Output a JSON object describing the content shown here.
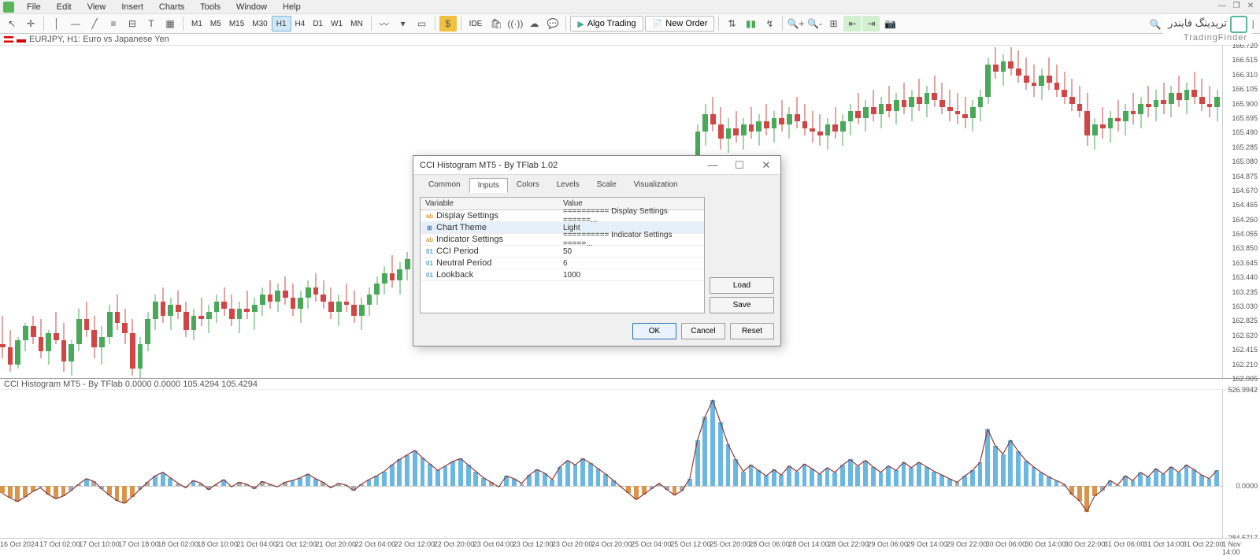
{
  "menu": {
    "items": [
      "File",
      "Edit",
      "View",
      "Insert",
      "Charts",
      "Tools",
      "Window",
      "Help"
    ]
  },
  "timeframes": {
    "items": [
      "M1",
      "M5",
      "M15",
      "M30",
      "H1",
      "H4",
      "D1",
      "W1",
      "MN"
    ],
    "active": "H1"
  },
  "toolbar": {
    "algo": "Algo Trading",
    "neworder": "New Order",
    "ide": "IDE"
  },
  "logo": {
    "arabic": "تریدینگ فایندر",
    "eng": "TradingFinder"
  },
  "chart": {
    "title": "EURJPY, H1: Euro vs Japanese Yen",
    "price_min": 162.005,
    "price_max": 166.72,
    "ticks": [
      "166.720",
      "166.515",
      "166.310",
      "166.105",
      "165.900",
      "165.695",
      "165.490",
      "165.285",
      "165.080",
      "164.875",
      "164.670",
      "164.465",
      "164.260",
      "164.055",
      "163.850",
      "163.645",
      "163.440",
      "163.235",
      "163.030",
      "162.825",
      "162.620",
      "162.415",
      "162.210",
      "162.005"
    ],
    "up_color": "#4aa85a",
    "down_color": "#d04545",
    "wick_color": "#333"
  },
  "indicator": {
    "title": "CCI Histogram MT5 - By TFlab 0.0000 0.0000 105.4294 105.4294",
    "ticks": [
      "526.9942",
      "0.0000",
      "-284.5717"
    ],
    "pos_color": "#6cb7e0",
    "neg_color": "#d9934a",
    "line_color": "#8a3a3a",
    "neutral_color": "#aaa"
  },
  "timeaxis": {
    "ticks": [
      "16 Oct 2024",
      "17 Oct 02:00",
      "17 Oct 10:00",
      "17 Oct 18:00",
      "18 Oct 02:00",
      "18 Oct 10:00",
      "21 Oct 04:00",
      "21 Oct 12:00",
      "21 Oct 20:00",
      "22 Oct 04:00",
      "22 Oct 12:00",
      "22 Oct 20:00",
      "23 Oct 04:00",
      "23 Oct 12:00",
      "23 Oct 20:00",
      "24 Oct 20:00",
      "25 Oct 04:00",
      "25 Oct 12:00",
      "25 Oct 20:00",
      "28 Oct 06:00",
      "28 Oct 14:00",
      "28 Oct 22:00",
      "29 Oct 06:00",
      "29 Oct 14:00",
      "29 Oct 22:00",
      "30 Oct 06:00",
      "30 Oct 14:00",
      "30 Oct 22:00",
      "31 Oct 06:00",
      "31 Oct 14:00",
      "31 Oct 22:00",
      "1 Nov 14:00"
    ]
  },
  "dialog": {
    "title": "CCI Histogram MT5 - By TFlab 1.02",
    "tabs": [
      "Common",
      "Inputs",
      "Colors",
      "Levels",
      "Scale",
      "Visualization"
    ],
    "active_tab": "Inputs",
    "headers": {
      "var": "Variable",
      "val": "Value"
    },
    "rows": [
      {
        "icon": "ab",
        "icolor": "#d9a050",
        "var": "Display Settings",
        "val": "========== Display Settings ======..."
      },
      {
        "icon": "⊞",
        "icolor": "#5080c0",
        "var": "Chart Theme",
        "val": "Light",
        "sel": true
      },
      {
        "icon": "ab",
        "icolor": "#d9a050",
        "var": "Indicator Settings",
        "val": "========== Indicator Settings =====..."
      },
      {
        "icon": "01",
        "icolor": "#5aa0d0",
        "var": "CCI Period",
        "val": "50"
      },
      {
        "icon": "01",
        "icolor": "#5aa0d0",
        "var": "Neutral Period",
        "val": "6"
      },
      {
        "icon": "01",
        "icolor": "#5aa0d0",
        "var": "Lookback",
        "val": "1000"
      }
    ],
    "buttons": {
      "load": "Load",
      "save": "Save",
      "ok": "OK",
      "cancel": "Cancel",
      "reset": "Reset"
    }
  },
  "candles": [
    {
      "o": 162.5,
      "h": 162.9,
      "l": 162.3,
      "c": 162.45
    },
    {
      "o": 162.45,
      "h": 162.7,
      "l": 162.1,
      "c": 162.2
    },
    {
      "o": 162.2,
      "h": 162.6,
      "l": 162.15,
      "c": 162.55
    },
    {
      "o": 162.55,
      "h": 162.8,
      "l": 162.4,
      "c": 162.75
    },
    {
      "o": 162.75,
      "h": 162.9,
      "l": 162.5,
      "c": 162.6
    },
    {
      "o": 162.6,
      "h": 162.85,
      "l": 162.3,
      "c": 162.4
    },
    {
      "o": 162.4,
      "h": 162.7,
      "l": 162.2,
      "c": 162.65
    },
    {
      "o": 162.65,
      "h": 162.95,
      "l": 162.5,
      "c": 162.55
    },
    {
      "o": 162.55,
      "h": 162.8,
      "l": 162.1,
      "c": 162.25
    },
    {
      "o": 162.25,
      "h": 162.55,
      "l": 162.05,
      "c": 162.5
    },
    {
      "o": 162.5,
      "h": 163.0,
      "l": 162.4,
      "c": 162.85
    },
    {
      "o": 162.85,
      "h": 163.1,
      "l": 162.6,
      "c": 162.7
    },
    {
      "o": 162.7,
      "h": 162.9,
      "l": 162.3,
      "c": 162.45
    },
    {
      "o": 162.45,
      "h": 162.75,
      "l": 162.2,
      "c": 162.6
    },
    {
      "o": 162.6,
      "h": 163.05,
      "l": 162.5,
      "c": 162.95
    },
    {
      "o": 162.95,
      "h": 163.2,
      "l": 162.7,
      "c": 162.8
    },
    {
      "o": 162.8,
      "h": 163.0,
      "l": 162.5,
      "c": 162.65
    },
    {
      "o": 162.65,
      "h": 162.85,
      "l": 162.05,
      "c": 162.15
    },
    {
      "o": 162.15,
      "h": 162.6,
      "l": 162.0,
      "c": 162.5
    },
    {
      "o": 162.5,
      "h": 162.95,
      "l": 162.4,
      "c": 162.85
    },
    {
      "o": 162.85,
      "h": 163.2,
      "l": 162.7,
      "c": 163.1
    },
    {
      "o": 163.1,
      "h": 163.3,
      "l": 162.8,
      "c": 162.9
    },
    {
      "o": 162.9,
      "h": 163.15,
      "l": 162.7,
      "c": 163.05
    },
    {
      "o": 163.05,
      "h": 163.25,
      "l": 162.85,
      "c": 162.95
    },
    {
      "o": 162.95,
      "h": 163.1,
      "l": 162.6,
      "c": 162.7
    },
    {
      "o": 162.7,
      "h": 163.0,
      "l": 162.55,
      "c": 162.9
    },
    {
      "o": 162.9,
      "h": 163.15,
      "l": 162.75,
      "c": 162.85
    },
    {
      "o": 162.85,
      "h": 163.05,
      "l": 162.65,
      "c": 162.95
    },
    {
      "o": 162.95,
      "h": 163.2,
      "l": 162.8,
      "c": 163.1
    },
    {
      "o": 163.1,
      "h": 163.3,
      "l": 162.9,
      "c": 163.0
    },
    {
      "o": 163.0,
      "h": 163.2,
      "l": 162.75,
      "c": 162.85
    },
    {
      "o": 162.85,
      "h": 163.1,
      "l": 162.65,
      "c": 163.0
    },
    {
      "o": 163.0,
      "h": 163.25,
      "l": 162.85,
      "c": 162.95
    },
    {
      "o": 162.95,
      "h": 163.15,
      "l": 162.7,
      "c": 163.05
    },
    {
      "o": 163.05,
      "h": 163.3,
      "l": 162.9,
      "c": 163.2
    },
    {
      "o": 163.2,
      "h": 163.4,
      "l": 163.0,
      "c": 163.1
    },
    {
      "o": 163.1,
      "h": 163.35,
      "l": 162.95,
      "c": 163.25
    },
    {
      "o": 163.25,
      "h": 163.45,
      "l": 163.05,
      "c": 163.15
    },
    {
      "o": 163.15,
      "h": 163.35,
      "l": 162.9,
      "c": 163.0
    },
    {
      "o": 163.0,
      "h": 163.25,
      "l": 162.8,
      "c": 163.15
    },
    {
      "o": 163.15,
      "h": 163.4,
      "l": 163.0,
      "c": 163.3
    },
    {
      "o": 163.3,
      "h": 163.5,
      "l": 163.1,
      "c": 163.2
    },
    {
      "o": 163.2,
      "h": 163.4,
      "l": 163.0,
      "c": 163.1
    },
    {
      "o": 163.1,
      "h": 163.3,
      "l": 162.85,
      "c": 162.95
    },
    {
      "o": 162.95,
      "h": 163.2,
      "l": 162.75,
      "c": 163.1
    },
    {
      "o": 163.1,
      "h": 163.35,
      "l": 162.95,
      "c": 163.05
    },
    {
      "o": 163.05,
      "h": 163.25,
      "l": 162.8,
      "c": 162.9
    },
    {
      "o": 162.9,
      "h": 163.15,
      "l": 162.7,
      "c": 163.05
    },
    {
      "o": 163.05,
      "h": 163.3,
      "l": 162.9,
      "c": 163.2
    },
    {
      "o": 163.2,
      "h": 163.45,
      "l": 163.05,
      "c": 163.35
    },
    {
      "o": 163.35,
      "h": 163.6,
      "l": 163.2,
      "c": 163.5
    },
    {
      "o": 163.5,
      "h": 163.75,
      "l": 163.3,
      "c": 163.4
    },
    {
      "o": 163.4,
      "h": 163.65,
      "l": 163.2,
      "c": 163.55
    },
    {
      "o": 163.55,
      "h": 163.8,
      "l": 163.4,
      "c": 163.7
    },
    {
      "o": 163.7,
      "h": 163.9,
      "l": 163.5,
      "c": 163.6
    },
    {
      "o": 163.6,
      "h": 163.85,
      "l": 163.4,
      "c": 163.75
    },
    {
      "o": 163.75,
      "h": 164.0,
      "l": 163.6,
      "c": 163.9
    },
    {
      "o": 163.9,
      "h": 164.1,
      "l": 163.7,
      "c": 163.8
    },
    {
      "o": 163.8,
      "h": 164.05,
      "l": 163.6,
      "c": 163.95
    },
    {
      "o": 163.95,
      "h": 164.2,
      "l": 163.8,
      "c": 164.1
    },
    {
      "o": 164.1,
      "h": 164.3,
      "l": 163.9,
      "c": 164.0
    },
    {
      "o": 164.0,
      "h": 164.2,
      "l": 163.75,
      "c": 163.85
    },
    {
      "o": 163.85,
      "h": 164.1,
      "l": 163.65,
      "c": 164.0
    },
    {
      "o": 164.0,
      "h": 164.25,
      "l": 163.85,
      "c": 163.95
    },
    {
      "o": 163.95,
      "h": 164.15,
      "l": 163.7,
      "c": 163.8
    },
    {
      "o": 163.8,
      "h": 164.05,
      "l": 163.6,
      "c": 163.95
    },
    {
      "o": 163.95,
      "h": 164.2,
      "l": 163.8,
      "c": 164.1
    },
    {
      "o": 164.1,
      "h": 164.35,
      "l": 163.95,
      "c": 164.25
    },
    {
      "o": 164.25,
      "h": 164.45,
      "l": 164.05,
      "c": 164.15
    },
    {
      "o": 164.15,
      "h": 164.4,
      "l": 163.95,
      "c": 164.3
    },
    {
      "o": 164.3,
      "h": 164.55,
      "l": 164.15,
      "c": 164.45
    },
    {
      "o": 164.45,
      "h": 164.65,
      "l": 164.25,
      "c": 164.35
    },
    {
      "o": 164.35,
      "h": 164.6,
      "l": 164.15,
      "c": 164.5
    },
    {
      "o": 164.5,
      "h": 164.75,
      "l": 164.35,
      "c": 164.65
    },
    {
      "o": 164.65,
      "h": 164.85,
      "l": 164.45,
      "c": 164.55
    },
    {
      "o": 164.55,
      "h": 164.8,
      "l": 164.35,
      "c": 164.45
    },
    {
      "o": 164.45,
      "h": 164.7,
      "l": 164.25,
      "c": 164.6
    },
    {
      "o": 164.6,
      "h": 164.85,
      "l": 164.45,
      "c": 164.75
    },
    {
      "o": 164.75,
      "h": 164.95,
      "l": 164.55,
      "c": 164.65
    },
    {
      "o": 164.65,
      "h": 164.9,
      "l": 164.45,
      "c": 164.55
    },
    {
      "o": 164.55,
      "h": 164.75,
      "l": 164.3,
      "c": 164.4
    },
    {
      "o": 164.4,
      "h": 164.65,
      "l": 164.2,
      "c": 164.3
    },
    {
      "o": 164.3,
      "h": 164.55,
      "l": 164.1,
      "c": 164.45
    },
    {
      "o": 164.45,
      "h": 164.7,
      "l": 164.3,
      "c": 164.6
    },
    {
      "o": 164.6,
      "h": 164.85,
      "l": 164.45,
      "c": 164.55
    },
    {
      "o": 164.55,
      "h": 164.75,
      "l": 164.3,
      "c": 164.4
    },
    {
      "o": 164.4,
      "h": 164.65,
      "l": 164.2,
      "c": 164.55
    },
    {
      "o": 164.55,
      "h": 164.8,
      "l": 164.4,
      "c": 164.5
    },
    {
      "o": 164.5,
      "h": 164.7,
      "l": 164.25,
      "c": 164.35
    },
    {
      "o": 164.35,
      "h": 164.6,
      "l": 164.15,
      "c": 164.5
    },
    {
      "o": 164.5,
      "h": 164.9,
      "l": 164.4,
      "c": 164.8
    },
    {
      "o": 164.8,
      "h": 165.6,
      "l": 164.7,
      "c": 165.5
    },
    {
      "o": 165.5,
      "h": 165.9,
      "l": 165.3,
      "c": 165.75
    },
    {
      "o": 165.75,
      "h": 166.0,
      "l": 165.5,
      "c": 165.6
    },
    {
      "o": 165.6,
      "h": 165.85,
      "l": 165.25,
      "c": 165.4
    },
    {
      "o": 165.4,
      "h": 165.7,
      "l": 165.2,
      "c": 165.55
    },
    {
      "o": 165.55,
      "h": 165.8,
      "l": 165.35,
      "c": 165.45
    },
    {
      "o": 165.45,
      "h": 165.7,
      "l": 165.25,
      "c": 165.6
    },
    {
      "o": 165.6,
      "h": 165.85,
      "l": 165.4,
      "c": 165.5
    },
    {
      "o": 165.5,
      "h": 165.75,
      "l": 165.3,
      "c": 165.65
    },
    {
      "o": 165.65,
      "h": 165.9,
      "l": 165.45,
      "c": 165.55
    },
    {
      "o": 165.55,
      "h": 165.8,
      "l": 165.35,
      "c": 165.7
    },
    {
      "o": 165.7,
      "h": 165.95,
      "l": 165.5,
      "c": 165.6
    },
    {
      "o": 165.6,
      "h": 165.85,
      "l": 165.4,
      "c": 165.75
    },
    {
      "o": 165.75,
      "h": 166.0,
      "l": 165.55,
      "c": 165.65
    },
    {
      "o": 165.65,
      "h": 165.9,
      "l": 165.45,
      "c": 165.55
    },
    {
      "o": 165.55,
      "h": 165.8,
      "l": 165.35,
      "c": 165.5
    },
    {
      "o": 165.5,
      "h": 165.75,
      "l": 165.3,
      "c": 165.45
    },
    {
      "o": 165.45,
      "h": 165.7,
      "l": 165.25,
      "c": 165.6
    },
    {
      "o": 165.6,
      "h": 165.85,
      "l": 165.4,
      "c": 165.5
    },
    {
      "o": 165.5,
      "h": 165.75,
      "l": 165.3,
      "c": 165.65
    },
    {
      "o": 165.65,
      "h": 165.9,
      "l": 165.45,
      "c": 165.8
    },
    {
      "o": 165.8,
      "h": 166.05,
      "l": 165.6,
      "c": 165.7
    },
    {
      "o": 165.7,
      "h": 165.95,
      "l": 165.5,
      "c": 165.85
    },
    {
      "o": 165.85,
      "h": 166.1,
      "l": 165.65,
      "c": 165.75
    },
    {
      "o": 165.75,
      "h": 166.0,
      "l": 165.55,
      "c": 165.9
    },
    {
      "o": 165.9,
      "h": 166.15,
      "l": 165.7,
      "c": 165.8
    },
    {
      "o": 165.8,
      "h": 166.05,
      "l": 165.6,
      "c": 165.95
    },
    {
      "o": 165.95,
      "h": 166.2,
      "l": 165.75,
      "c": 165.85
    },
    {
      "o": 165.85,
      "h": 166.1,
      "l": 165.65,
      "c": 166.0
    },
    {
      "o": 166.0,
      "h": 166.25,
      "l": 165.8,
      "c": 165.9
    },
    {
      "o": 165.9,
      "h": 166.15,
      "l": 165.7,
      "c": 166.05
    },
    {
      "o": 166.05,
      "h": 166.3,
      "l": 165.85,
      "c": 165.95
    },
    {
      "o": 165.95,
      "h": 166.2,
      "l": 165.75,
      "c": 165.85
    },
    {
      "o": 165.85,
      "h": 166.1,
      "l": 165.65,
      "c": 165.8
    },
    {
      "o": 165.8,
      "h": 166.05,
      "l": 165.6,
      "c": 165.75
    },
    {
      "o": 165.75,
      "h": 166.0,
      "l": 165.55,
      "c": 165.7
    },
    {
      "o": 165.7,
      "h": 165.95,
      "l": 165.5,
      "c": 165.85
    },
    {
      "o": 165.85,
      "h": 166.1,
      "l": 165.65,
      "c": 166.0
    },
    {
      "o": 166.0,
      "h": 166.55,
      "l": 165.9,
      "c": 166.45
    },
    {
      "o": 166.45,
      "h": 166.7,
      "l": 166.25,
      "c": 166.35
    },
    {
      "o": 166.35,
      "h": 166.6,
      "l": 166.15,
      "c": 166.5
    },
    {
      "o": 166.5,
      "h": 166.7,
      "l": 166.3,
      "c": 166.4
    },
    {
      "o": 166.4,
      "h": 166.65,
      "l": 166.2,
      "c": 166.3
    },
    {
      "o": 166.3,
      "h": 166.55,
      "l": 166.1,
      "c": 166.2
    },
    {
      "o": 166.2,
      "h": 166.45,
      "l": 166.0,
      "c": 166.15
    },
    {
      "o": 166.15,
      "h": 166.4,
      "l": 165.95,
      "c": 166.3
    },
    {
      "o": 166.3,
      "h": 166.55,
      "l": 166.1,
      "c": 166.2
    },
    {
      "o": 166.2,
      "h": 166.45,
      "l": 166.0,
      "c": 166.1
    },
    {
      "o": 166.1,
      "h": 166.35,
      "l": 165.9,
      "c": 166.0
    },
    {
      "o": 166.0,
      "h": 166.25,
      "l": 165.8,
      "c": 165.9
    },
    {
      "o": 165.9,
      "h": 166.15,
      "l": 165.7,
      "c": 165.8
    },
    {
      "o": 165.8,
      "h": 166.05,
      "l": 165.3,
      "c": 165.45
    },
    {
      "o": 165.45,
      "h": 165.7,
      "l": 165.25,
      "c": 165.6
    },
    {
      "o": 165.6,
      "h": 165.85,
      "l": 165.4,
      "c": 165.55
    },
    {
      "o": 165.55,
      "h": 165.8,
      "l": 165.35,
      "c": 165.7
    },
    {
      "o": 165.7,
      "h": 165.95,
      "l": 165.5,
      "c": 165.65
    },
    {
      "o": 165.65,
      "h": 165.9,
      "l": 165.45,
      "c": 165.8
    },
    {
      "o": 165.8,
      "h": 166.05,
      "l": 165.6,
      "c": 165.75
    },
    {
      "o": 165.75,
      "h": 166.0,
      "l": 165.55,
      "c": 165.9
    },
    {
      "o": 165.9,
      "h": 166.15,
      "l": 165.7,
      "c": 165.85
    },
    {
      "o": 165.85,
      "h": 166.1,
      "l": 165.65,
      "c": 165.95
    },
    {
      "o": 165.95,
      "h": 166.2,
      "l": 165.75,
      "c": 165.9
    },
    {
      "o": 165.9,
      "h": 166.15,
      "l": 165.7,
      "c": 166.05
    },
    {
      "o": 166.05,
      "h": 166.3,
      "l": 165.85,
      "c": 165.95
    },
    {
      "o": 165.95,
      "h": 166.2,
      "l": 165.75,
      "c": 166.1
    },
    {
      "o": 166.1,
      "h": 166.35,
      "l": 165.9,
      "c": 166.0
    },
    {
      "o": 166.0,
      "h": 166.25,
      "l": 165.8,
      "c": 165.9
    },
    {
      "o": 165.9,
      "h": 166.15,
      "l": 165.7,
      "c": 165.85
    },
    {
      "o": 165.85,
      "h": 166.1,
      "l": 165.65,
      "c": 166.0
    }
  ],
  "histogram": [
    -40,
    -65,
    -85,
    -60,
    -30,
    -10,
    -45,
    -70,
    -55,
    -25,
    10,
    40,
    25,
    -15,
    -50,
    -80,
    -95,
    -60,
    -20,
    20,
    55,
    75,
    45,
    15,
    -10,
    30,
    15,
    -20,
    10,
    35,
    -5,
    20,
    10,
    -15,
    25,
    10,
    -5,
    20,
    30,
    45,
    65,
    40,
    20,
    -10,
    15,
    5,
    -25,
    10,
    35,
    55,
    80,
    115,
    145,
    170,
    195,
    155,
    120,
    85,
    110,
    135,
    150,
    115,
    80,
    45,
    20,
    -5,
    55,
    40,
    15,
    60,
    90,
    70,
    35,
    105,
    140,
    115,
    150,
    125,
    95,
    65,
    30,
    -5,
    -40,
    -75,
    -45,
    -15,
    15,
    -20,
    -50,
    -25,
    40,
    250,
    380,
    470,
    350,
    230,
    145,
    80,
    115,
    85,
    55,
    90,
    60,
    110,
    80,
    120,
    95,
    65,
    100,
    75,
    115,
    145,
    110,
    140,
    105,
    75,
    110,
    85,
    130,
    100,
    130,
    105,
    80,
    60,
    40,
    20,
    55,
    85,
    130,
    310,
    220,
    175,
    250,
    190,
    140,
    105,
    75,
    50,
    30,
    10,
    -45,
    -80,
    -140,
    -55,
    -25,
    30,
    5,
    55,
    30,
    75,
    50,
    95,
    65,
    105,
    75,
    115,
    90,
    60,
    40,
    85
  ]
}
